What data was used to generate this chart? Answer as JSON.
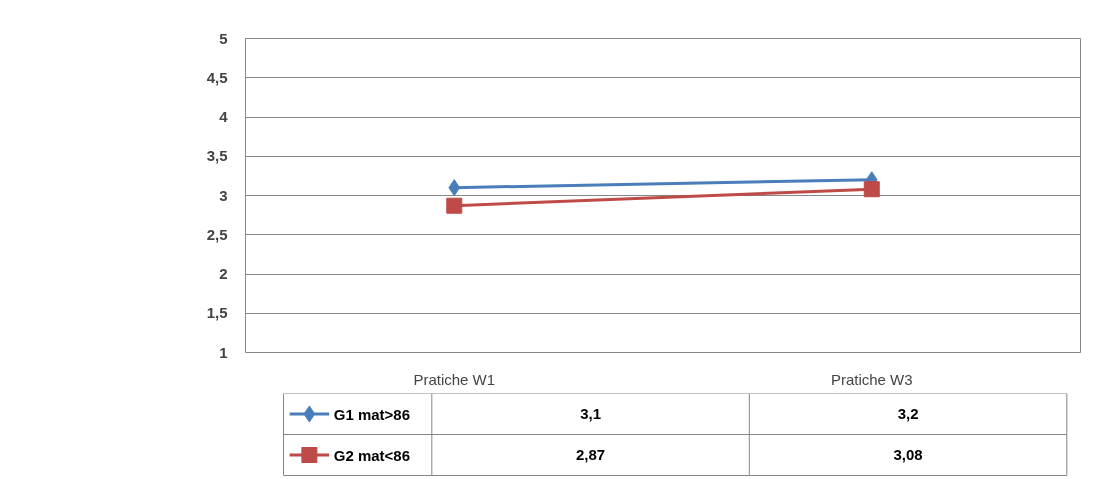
{
  "chart_data": {
    "type": "line",
    "categories": [
      "Pratiche W1",
      "Pratiche W3"
    ],
    "series": [
      {
        "name": "G1 mat>86",
        "color": "#4a7ebb",
        "marker": "diamond",
        "values": [
          3.1,
          3.2
        ],
        "value_labels": [
          "3,1",
          "3,2"
        ]
      },
      {
        "name": "G2 mat<86",
        "color": "#be4b48",
        "marker": "square",
        "values": [
          2.87,
          3.08
        ],
        "value_labels": [
          "2,87",
          "3,08"
        ]
      }
    ],
    "ylim": [
      1,
      5
    ],
    "yticks": [
      1,
      {
        "value": 1.5,
        "label": "1,5"
      },
      2,
      {
        "value": 2.5,
        "label": "2,5"
      },
      3,
      {
        "value": 3.5,
        "label": "3,5"
      },
      4,
      {
        "value": 4.5,
        "label": "4,5"
      },
      5
    ],
    "grid": "y",
    "legend": "bottom left",
    "line_style": "solid"
  }
}
